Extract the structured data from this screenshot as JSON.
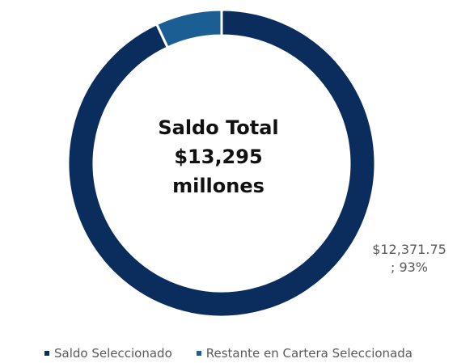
{
  "chart_data": {
    "type": "pie",
    "variant": "donut",
    "center_text": [
      "Saldo Total",
      "$13,295",
      "millones"
    ],
    "slices": [
      {
        "name": "Saldo Seleccionado",
        "value": 12371.75,
        "percent": 93,
        "color": "#0a2d5e",
        "label_line1": "$12,371.75",
        "label_line2": "; 93%"
      },
      {
        "name": "Restante en Cartera Seleccionada",
        "value": 923.25,
        "percent": 7,
        "color": "#1b5e94"
      }
    ],
    "legend_position": "bottom"
  }
}
